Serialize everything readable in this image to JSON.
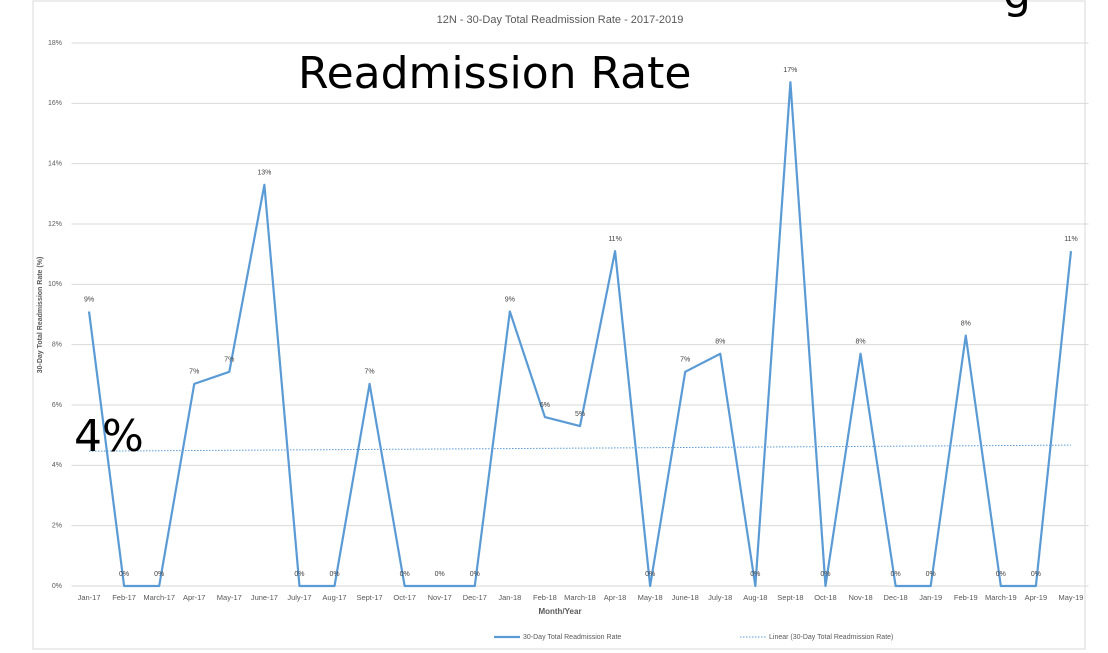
{
  "chart_data": {
    "type": "line",
    "title": "12N - 30-Day Total Readmission Rate - 2017-2019",
    "x_label": "Month/Year",
    "y_label": "30-Day Total Readmission  Rate (%)",
    "annotations": [
      "Readmission Rate",
      "4%",
      "g"
    ],
    "categories": [
      "Jan-17",
      "Feb-17",
      "March-17",
      "Apr-17",
      "May-17",
      "June-17",
      "July-17",
      "Aug-17",
      "Sept-17",
      "Oct-17",
      "Nov-17",
      "Dec-17",
      "Jan-18",
      "Feb-18",
      "March-18",
      "Apr-18",
      "May-18",
      "June-18",
      "July-18",
      "Aug-18",
      "Sept-18",
      "Oct-18",
      "Nov-18",
      "Dec-18",
      "Jan-19",
      "Feb-19",
      "March-19",
      "Apr-19",
      "May-19"
    ],
    "series": [
      {
        "name": "30-Day Total Readmission Rate",
        "color": "#5b9bd5",
        "values": [
          9.1,
          0,
          0,
          6.7,
          7.1,
          13.3,
          0,
          0,
          6.7,
          0,
          0,
          0,
          9.1,
          5.6,
          5.3,
          11.1,
          0,
          7.1,
          7.7,
          0,
          16.7,
          0,
          7.7,
          0,
          0,
          8.3,
          0,
          0,
          11.1
        ],
        "value_labels": [
          "9%",
          "0%",
          "0%",
          "7%",
          "7%",
          "13%",
          "0%",
          "0%",
          "7%",
          "0%",
          "0%",
          "0%",
          "9%",
          "6%",
          "5%",
          "11%",
          "0%",
          "7%",
          "8%",
          "0%",
          "17%",
          "0%",
          "8%",
          "0%",
          "0%",
          "8%",
          "0%",
          "0%",
          "11%"
        ]
      }
    ],
    "trendline": {
      "name": "Linear (30-Day Total Readmission Rate)",
      "color": "#5b9bd5",
      "start": 4.47,
      "end": 4.67
    },
    "ylim": [
      0,
      18
    ],
    "yticks": [
      {
        "value": 0,
        "label": "0%"
      },
      {
        "value": 2,
        "label": "2%"
      },
      {
        "value": 4,
        "label": "4%"
      },
      {
        "value": 6,
        "label": "6%"
      },
      {
        "value": 8,
        "label": "8%"
      },
      {
        "value": 10,
        "label": "10%"
      },
      {
        "value": 12,
        "label": "12%"
      },
      {
        "value": 14,
        "label": "14%"
      },
      {
        "value": 16,
        "label": "16%"
      },
      {
        "value": 18,
        "label": "18%"
      }
    ],
    "grid": true,
    "legend": "bottom"
  }
}
